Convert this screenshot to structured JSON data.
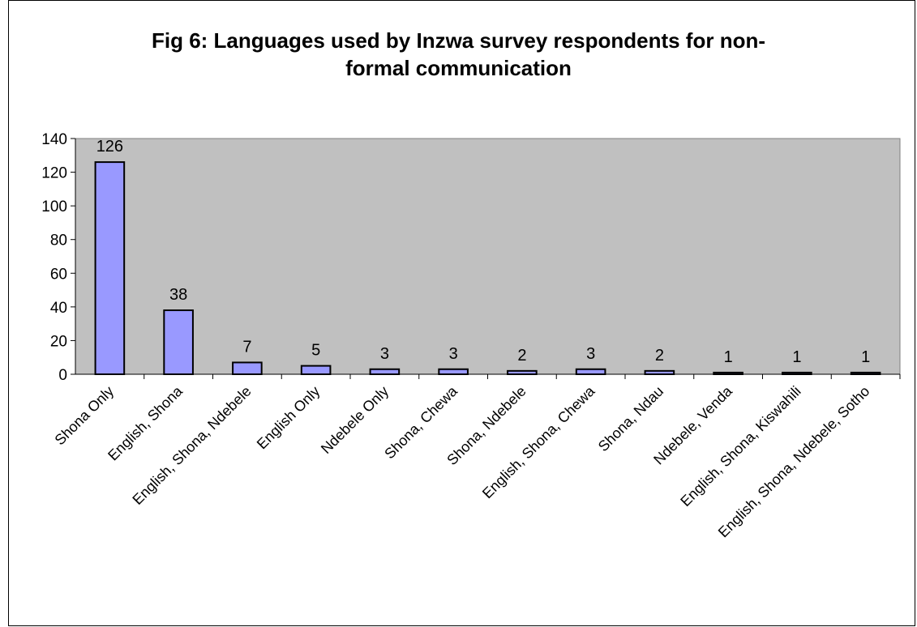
{
  "chart_data": {
    "type": "bar",
    "title_lines": [
      "Fig 6: Languages used by Inzwa survey respondents for non-",
      "formal communication"
    ],
    "categories": [
      "Shona Only",
      "English, Shona",
      "English, Shona, Ndebele",
      "English Only",
      "Ndebele Only",
      "Shona, Chewa",
      "Shona, Ndebele",
      "English, Shona, Chewa",
      "Shona, Ndau",
      "Ndebele, Venda",
      "English, Shona, Kiswahili",
      "English, Shona, Ndebele, Sotho"
    ],
    "values": [
      126,
      38,
      7,
      5,
      3,
      3,
      2,
      3,
      2,
      1,
      1,
      1
    ],
    "data_labels": [
      "126",
      "38",
      "7",
      "5",
      "3",
      "3",
      "2",
      "3",
      "2",
      "1",
      "1",
      "1"
    ],
    "y_ticks": [
      "0",
      "20",
      "40",
      "60",
      "80",
      "100",
      "120",
      "140"
    ],
    "ylim": [
      0,
      140
    ],
    "xlabel": "",
    "ylabel": "",
    "grid": false,
    "legend": "none",
    "colors": {
      "plot_area": "#c0c0c0",
      "bar_fill": "#9999ff",
      "bar_stroke": "#000000"
    }
  }
}
